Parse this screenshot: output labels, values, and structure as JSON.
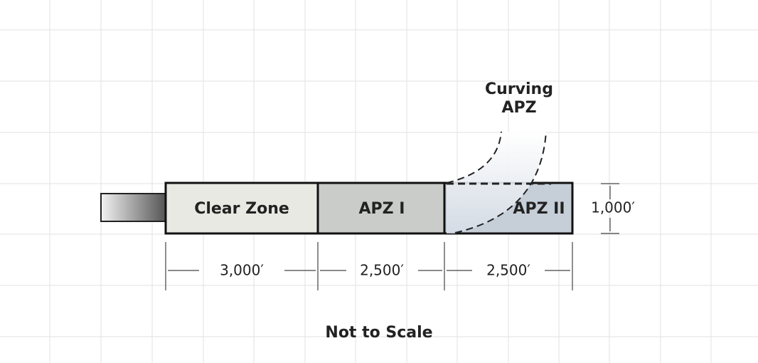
{
  "zones": [
    {
      "label": "Clear Zone"
    },
    {
      "label": "APZ I"
    },
    {
      "label": "APZ II"
    }
  ],
  "curving_label": [
    "Curving",
    "APZ"
  ],
  "dimensions": {
    "lengths": [
      "3,000′",
      "2,500′",
      "2,500′"
    ],
    "width": "1,000′"
  },
  "note": "Not to Scale"
}
